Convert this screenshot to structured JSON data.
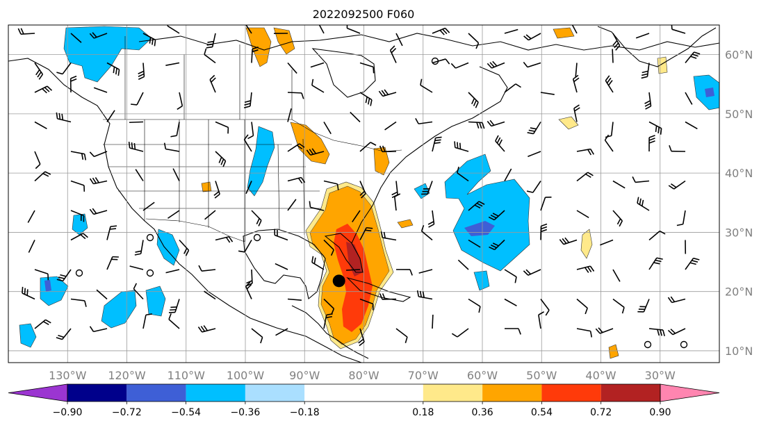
{
  "title": "2022092500 F060",
  "lat_labels": [
    "10°N",
    "20°N",
    "30°N",
    "40°N",
    "50°N",
    "60°N"
  ],
  "lon_labels": [
    "130°W",
    "120°W",
    "110°W",
    "100°W",
    "90°W",
    "80°W",
    "70°W",
    "60°W",
    "50°W",
    "40°W",
    "30°W"
  ],
  "colorbar": {
    "ticks": [
      "−0.90",
      "−0.72",
      "−0.54",
      "−0.36",
      "−0.18",
      "0.18",
      "0.36",
      "0.54",
      "0.72",
      "0.90"
    ],
    "colors": [
      "#9b35d1",
      "#00008b",
      "#3e5fd6",
      "#00bfff",
      "#aadfff",
      "#ffffff",
      "#ffe98a",
      "#ffa500",
      "#ff3a0a",
      "#b22222",
      "#ff85b0"
    ]
  },
  "map": {
    "projection": "equirectangular",
    "lon_range": [
      -140,
      -20
    ],
    "lat_range": [
      8,
      65
    ],
    "gridlines": true,
    "storm_center": {
      "lon": -84.2,
      "lat": 21.8
    },
    "label_color": "#808080"
  }
}
